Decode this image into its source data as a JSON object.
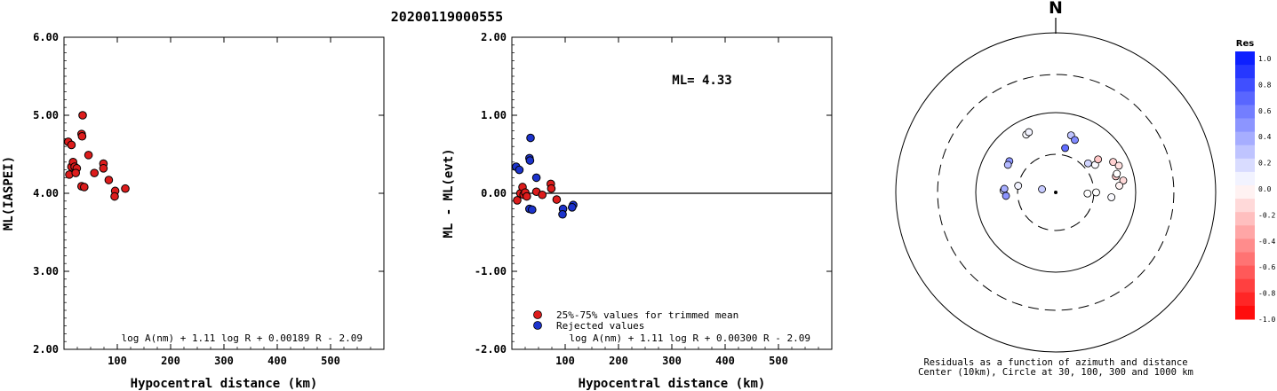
{
  "page_title": "20200119000555",
  "chart_data": [
    {
      "type": "scatter",
      "ylabel": "ML(IASPEI)",
      "xlabel": "Hypocentral distance (km)",
      "xlim": [
        0,
        600
      ],
      "ylim": [
        2.0,
        6.0
      ],
      "x_ticks": [
        "100",
        "200",
        "300",
        "400",
        "500"
      ],
      "y_ticks": [
        "2.00",
        "3.00",
        "4.00",
        "5.00",
        "6.00"
      ],
      "formula": "log A(nm) + 1.11 log R + 0.00189 R - 2.09",
      "marker_color": "#dd1c1c",
      "points": [
        {
          "x": 8,
          "y": 4.66
        },
        {
          "x": 14,
          "y": 4.62
        },
        {
          "x": 10,
          "y": 4.24
        },
        {
          "x": 14,
          "y": 4.34
        },
        {
          "x": 17,
          "y": 4.4
        },
        {
          "x": 20,
          "y": 4.34
        },
        {
          "x": 24,
          "y": 4.32
        },
        {
          "x": 22,
          "y": 4.26
        },
        {
          "x": 35,
          "y": 5.0
        },
        {
          "x": 33,
          "y": 4.76
        },
        {
          "x": 34,
          "y": 4.73
        },
        {
          "x": 33,
          "y": 4.09
        },
        {
          "x": 38,
          "y": 4.08
        },
        {
          "x": 46,
          "y": 4.49
        },
        {
          "x": 57,
          "y": 4.26
        },
        {
          "x": 74,
          "y": 4.38
        },
        {
          "x": 74,
          "y": 4.32
        },
        {
          "x": 84,
          "y": 4.17
        },
        {
          "x": 96,
          "y": 4.03
        },
        {
          "x": 95,
          "y": 3.96
        },
        {
          "x": 115,
          "y": 4.06
        }
      ]
    },
    {
      "type": "scatter",
      "ylabel": "ML - ML(evt)",
      "xlabel": "Hypocentral distance (km)",
      "xlim": [
        0,
        600
      ],
      "ylim": [
        -2.0,
        2.0
      ],
      "x_ticks": [
        "100",
        "200",
        "300",
        "400",
        "500"
      ],
      "y_ticks": [
        "-2.00",
        "-1.00",
        "0.00",
        "1.00",
        "2.00"
      ],
      "annotation": "ML= 4.33",
      "formula": "log A(nm) + 1.11 log R + 0.00300 R - 2.09",
      "zero_line": 0.0,
      "legend": [
        {
          "label": "25%-75% values for trimmed mean",
          "color": "#dd1c1c"
        },
        {
          "label": "Rejected values",
          "color": "#1c33cc"
        }
      ],
      "series": [
        {
          "name": "25%-75% values for trimmed mean",
          "color": "#dd1c1c",
          "points": [
            {
              "x": 10,
              "y": -0.09
            },
            {
              "x": 16,
              "y": 0.0
            },
            {
              "x": 20,
              "y": 0.08
            },
            {
              "x": 22,
              "y": -0.02
            },
            {
              "x": 25,
              "y": 0.01
            },
            {
              "x": 28,
              "y": -0.04
            },
            {
              "x": 46,
              "y": 0.02
            },
            {
              "x": 57,
              "y": -0.02
            },
            {
              "x": 73,
              "y": 0.12
            },
            {
              "x": 74,
              "y": 0.06
            },
            {
              "x": 84,
              "y": -0.08
            }
          ]
        },
        {
          "name": "Rejected values",
          "color": "#1c33cc",
          "points": [
            {
              "x": 8,
              "y": 0.34
            },
            {
              "x": 14,
              "y": 0.3
            },
            {
              "x": 35,
              "y": 0.71
            },
            {
              "x": 33,
              "y": 0.45
            },
            {
              "x": 34,
              "y": 0.42
            },
            {
              "x": 33,
              "y": -0.2
            },
            {
              "x": 38,
              "y": -0.21
            },
            {
              "x": 46,
              "y": 0.2
            },
            {
              "x": 96,
              "y": -0.2
            },
            {
              "x": 95,
              "y": -0.27
            },
            {
              "x": 115,
              "y": -0.15
            },
            {
              "x": 113,
              "y": -0.18
            }
          ]
        }
      ]
    },
    {
      "type": "scatter",
      "subtype": "polar-residual-map",
      "north_label": "N",
      "caption_line1": "Residuals as a function of azimuth and distance",
      "caption_line2": "Center (10km), Circle at 30, 100, 300 and 1000 km",
      "rings_km": [
        30,
        100,
        300,
        1000
      ],
      "colorbar_title": "Res",
      "colorbar_ticks": [
        "1.0",
        "0.8",
        "0.6",
        "0.4",
        "0.2",
        "0.0",
        "-0.2",
        "-0.4",
        "-0.6",
        "-0.8",
        "-1.0"
      ],
      "colorbar_range": [
        -1.0,
        1.0
      ],
      "stations": [
        {
          "azimuth_deg": 333,
          "distance_km": 65,
          "residual": 0.02
        },
        {
          "azimuth_deg": 336,
          "distance_km": 67,
          "residual": 0.05
        },
        {
          "azimuth_deg": 304,
          "distance_km": 50,
          "residual": 0.45
        },
        {
          "azimuth_deg": 300,
          "distance_km": 49,
          "residual": 0.3
        },
        {
          "azimuth_deg": 15,
          "distance_km": 55,
          "residual": 0.25
        },
        {
          "azimuth_deg": 20,
          "distance_km": 50,
          "residual": 0.5
        },
        {
          "azimuth_deg": 12,
          "distance_km": 37,
          "residual": 0.62
        },
        {
          "azimuth_deg": 272,
          "distance_km": 45,
          "residual": 0.15
        },
        {
          "azimuth_deg": 274,
          "distance_km": 44,
          "residual": 0.35
        },
        {
          "azimuth_deg": 280,
          "distance_km": 30,
          "residual": 0.05
        },
        {
          "azimuth_deg": 266,
          "distance_km": 42,
          "residual": 0.45
        },
        {
          "azimuth_deg": 283,
          "distance_km": 15,
          "residual": 0.22
        },
        {
          "azimuth_deg": 48,
          "distance_km": 35,
          "residual": 0.18
        },
        {
          "azimuth_deg": 55,
          "distance_km": 40,
          "residual": 0.02
        },
        {
          "azimuth_deg": 52,
          "distance_km": 47,
          "residual": -0.22
        },
        {
          "azimuth_deg": 62,
          "distance_km": 65,
          "residual": -0.18
        },
        {
          "azimuth_deg": 75,
          "distance_km": 60,
          "residual": -0.2
        },
        {
          "azimuth_deg": 67,
          "distance_km": 72,
          "residual": -0.12
        },
        {
          "azimuth_deg": 73,
          "distance_km": 63,
          "residual": 0.0
        },
        {
          "azimuth_deg": 80,
          "distance_km": 72,
          "residual": -0.15
        },
        {
          "azimuth_deg": 84,
          "distance_km": 63,
          "residual": -0.05
        },
        {
          "azimuth_deg": 90,
          "distance_km": 32,
          "residual": 0.0
        },
        {
          "azimuth_deg": 95,
          "distance_km": 50,
          "residual": 0.02
        },
        {
          "azimuth_deg": 92,
          "distance_km": 25,
          "residual": 0.0
        }
      ]
    }
  ]
}
